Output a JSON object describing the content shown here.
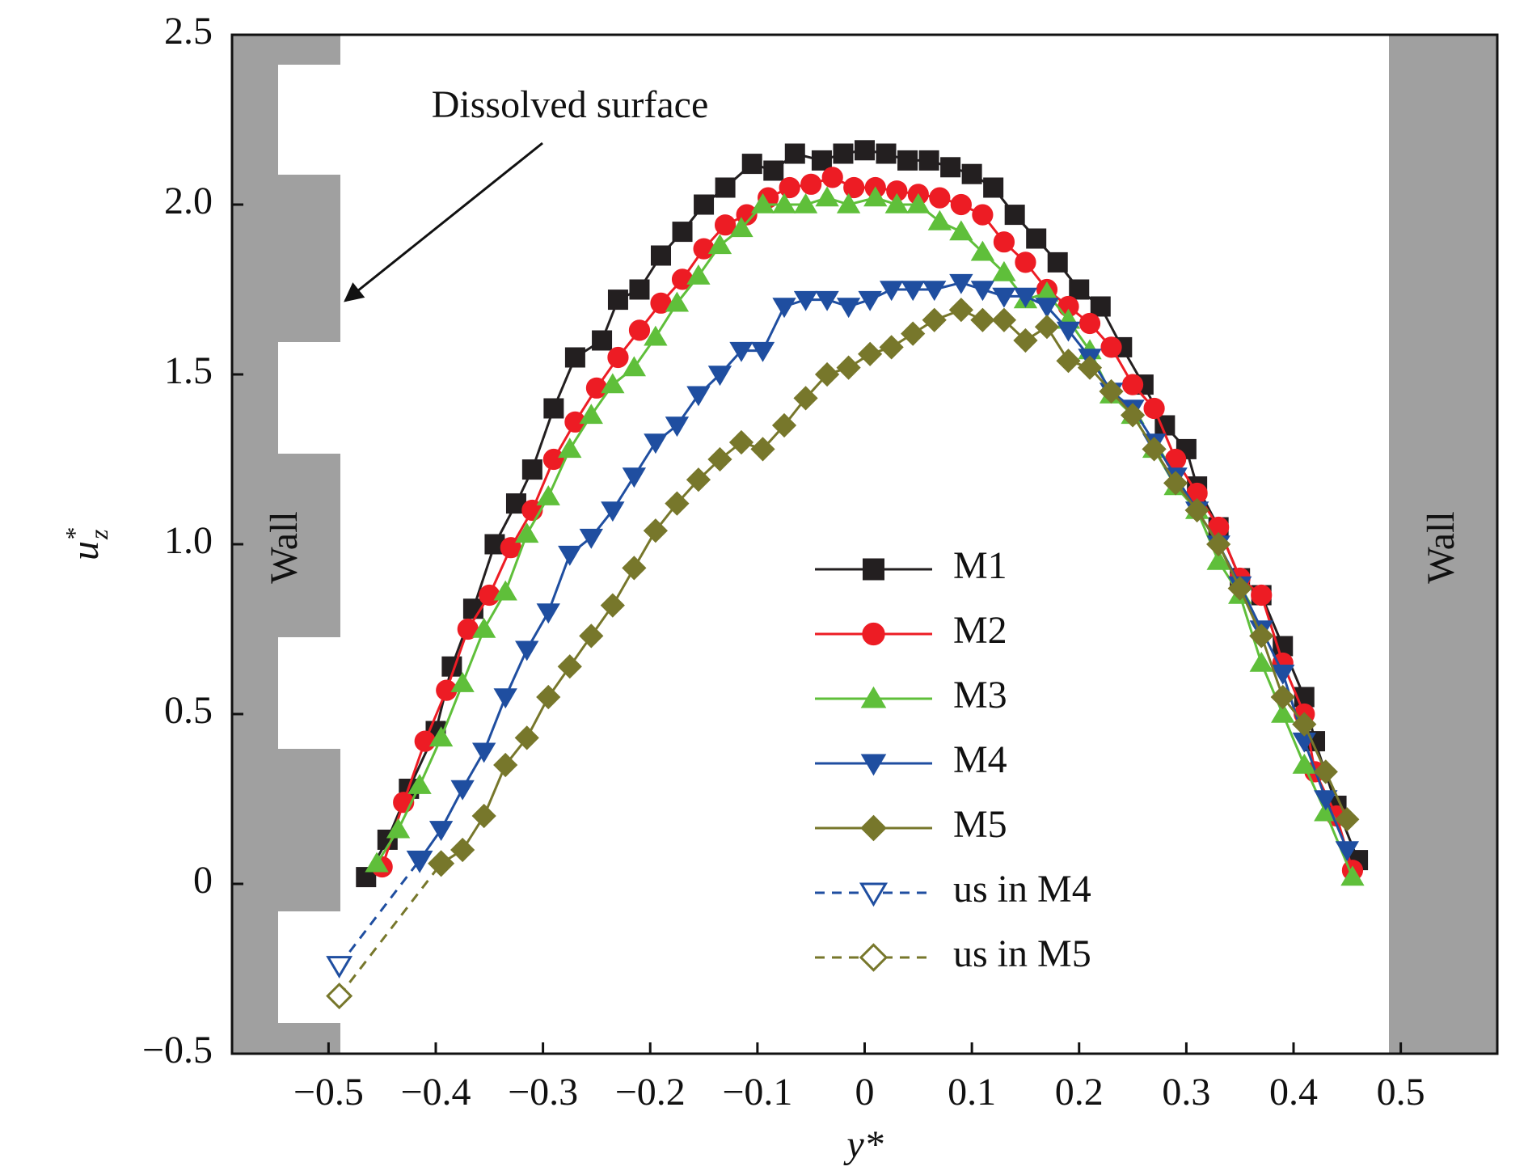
{
  "chart_data": {
    "type": "line",
    "xlabel": "y*",
    "ylabel": {
      "base": "u",
      "sup": "*",
      "sub": "z"
    },
    "annotations": {
      "dissolved": "Dissolved surface",
      "wall_left": "Wall",
      "wall_right": "Wall"
    },
    "xlim": [
      -0.59,
      0.59
    ],
    "ylim": [
      -0.5,
      2.5
    ],
    "xticks": [
      {
        "value": -0.5,
        "label": "−0.5"
      },
      {
        "value": -0.4,
        "label": "−0.4"
      },
      {
        "value": -0.3,
        "label": "−0.3"
      },
      {
        "value": -0.2,
        "label": "−0.2"
      },
      {
        "value": -0.1,
        "label": "−0.1"
      },
      0,
      0.1,
      0.2,
      0.3,
      0.4,
      0.5
    ],
    "yticks": [
      {
        "value": -0.5,
        "label": "−0.5"
      },
      0,
      0.5,
      {
        "value": 1.0,
        "label": "1.0"
      },
      1.5,
      {
        "value": 2.0,
        "label": "2.0"
      },
      2.5
    ],
    "series": [
      {
        "name": "M1",
        "color": "#231f20",
        "marker": "square",
        "filled": true,
        "dashed": false,
        "x": [
          -0.465,
          -0.445,
          -0.425,
          -0.4,
          -0.385,
          -0.365,
          -0.345,
          -0.325,
          -0.31,
          -0.29,
          -0.27,
          -0.245,
          -0.23,
          -0.21,
          -0.19,
          -0.17,
          -0.15,
          -0.13,
          -0.105,
          -0.085,
          -0.065,
          -0.04,
          -0.02,
          0,
          0.02,
          0.04,
          0.06,
          0.08,
          0.1,
          0.12,
          0.14,
          0.16,
          0.18,
          0.2,
          0.22,
          0.24,
          0.26,
          0.28,
          0.3,
          0.31,
          0.33,
          0.35,
          0.37,
          0.39,
          0.41,
          0.42,
          0.44,
          0.46
        ],
        "values": [
          0.02,
          0.13,
          0.28,
          0.45,
          0.64,
          0.81,
          1.0,
          1.12,
          1.22,
          1.4,
          1.55,
          1.6,
          1.72,
          1.75,
          1.85,
          1.92,
          2.0,
          2.05,
          2.12,
          2.1,
          2.15,
          2.13,
          2.15,
          2.16,
          2.15,
          2.13,
          2.13,
          2.11,
          2.09,
          2.05,
          1.97,
          1.9,
          1.83,
          1.75,
          1.7,
          1.58,
          1.47,
          1.35,
          1.28,
          1.17,
          1.05,
          0.9,
          0.85,
          0.7,
          0.55,
          0.42,
          0.23,
          0.07
        ]
      },
      {
        "name": "M2",
        "color": "#ed1c24",
        "marker": "circle",
        "filled": true,
        "dashed": false,
        "x": [
          -0.45,
          -0.43,
          -0.41,
          -0.39,
          -0.37,
          -0.35,
          -0.33,
          -0.31,
          -0.29,
          -0.27,
          -0.25,
          -0.23,
          -0.21,
          -0.19,
          -0.17,
          -0.15,
          -0.13,
          -0.11,
          -0.09,
          -0.07,
          -0.05,
          -0.03,
          -0.01,
          0.01,
          0.03,
          0.05,
          0.07,
          0.09,
          0.11,
          0.13,
          0.15,
          0.17,
          0.19,
          0.21,
          0.23,
          0.25,
          0.27,
          0.29,
          0.31,
          0.33,
          0.35,
          0.37,
          0.39,
          0.41,
          0.42,
          0.44,
          0.455
        ],
        "values": [
          0.05,
          0.24,
          0.42,
          0.57,
          0.75,
          0.85,
          0.99,
          1.1,
          1.25,
          1.36,
          1.46,
          1.55,
          1.63,
          1.71,
          1.78,
          1.87,
          1.94,
          1.97,
          2.02,
          2.05,
          2.06,
          2.08,
          2.05,
          2.05,
          2.04,
          2.03,
          2.02,
          2.0,
          1.97,
          1.89,
          1.83,
          1.75,
          1.7,
          1.65,
          1.58,
          1.47,
          1.4,
          1.25,
          1.15,
          1.05,
          0.9,
          0.85,
          0.65,
          0.5,
          0.33,
          0.2,
          0.04
        ]
      },
      {
        "name": "M3",
        "color": "#5fbf3a",
        "marker": "triangle-up",
        "filled": true,
        "dashed": false,
        "x": [
          -0.455,
          -0.435,
          -0.415,
          -0.395,
          -0.375,
          -0.355,
          -0.335,
          -0.315,
          -0.295,
          -0.275,
          -0.255,
          -0.235,
          -0.215,
          -0.195,
          -0.175,
          -0.155,
          -0.135,
          -0.115,
          -0.095,
          -0.075,
          -0.055,
          -0.035,
          -0.015,
          0.01,
          0.03,
          0.05,
          0.07,
          0.09,
          0.11,
          0.13,
          0.15,
          0.17,
          0.19,
          0.21,
          0.23,
          0.25,
          0.27,
          0.29,
          0.31,
          0.33,
          0.35,
          0.37,
          0.39,
          0.41,
          0.43,
          0.455
        ],
        "values": [
          0.06,
          0.16,
          0.29,
          0.43,
          0.59,
          0.75,
          0.86,
          1.03,
          1.14,
          1.28,
          1.38,
          1.47,
          1.52,
          1.61,
          1.71,
          1.79,
          1.88,
          1.93,
          2.0,
          2.0,
          2.0,
          2.02,
          2.0,
          2.02,
          2.0,
          2.0,
          1.95,
          1.92,
          1.86,
          1.8,
          1.72,
          1.74,
          1.66,
          1.57,
          1.44,
          1.38,
          1.28,
          1.17,
          1.1,
          0.95,
          0.85,
          0.65,
          0.5,
          0.35,
          0.21,
          0.02
        ]
      },
      {
        "name": "M4",
        "color": "#1f4ea0",
        "marker": "triangle-down",
        "filled": true,
        "dashed": false,
        "x": [
          -0.415,
          -0.395,
          -0.375,
          -0.355,
          -0.335,
          -0.315,
          -0.295,
          -0.275,
          -0.255,
          -0.235,
          -0.215,
          -0.195,
          -0.175,
          -0.155,
          -0.135,
          -0.115,
          -0.095,
          -0.075,
          -0.055,
          -0.035,
          -0.015,
          0.005,
          0.025,
          0.045,
          0.065,
          0.09,
          0.11,
          0.13,
          0.15,
          0.17,
          0.19,
          0.21,
          0.23,
          0.25,
          0.27,
          0.29,
          0.31,
          0.33,
          0.35,
          0.37,
          0.39,
          0.41,
          0.43,
          0.45
        ],
        "values": [
          0.07,
          0.16,
          0.28,
          0.39,
          0.55,
          0.69,
          0.8,
          0.97,
          1.02,
          1.1,
          1.2,
          1.3,
          1.35,
          1.44,
          1.5,
          1.57,
          1.57,
          1.7,
          1.72,
          1.72,
          1.7,
          1.72,
          1.75,
          1.75,
          1.75,
          1.77,
          1.75,
          1.73,
          1.73,
          1.7,
          1.63,
          1.55,
          1.45,
          1.4,
          1.3,
          1.2,
          1.1,
          1.0,
          0.88,
          0.75,
          0.62,
          0.42,
          0.25,
          0.1
        ]
      },
      {
        "name": "M5",
        "color": "#77772b",
        "marker": "diamond",
        "filled": true,
        "dashed": false,
        "x": [
          -0.395,
          -0.375,
          -0.355,
          -0.335,
          -0.315,
          -0.295,
          -0.275,
          -0.255,
          -0.235,
          -0.215,
          -0.195,
          -0.175,
          -0.155,
          -0.135,
          -0.115,
          -0.095,
          -0.075,
          -0.055,
          -0.035,
          -0.015,
          0.005,
          0.025,
          0.045,
          0.065,
          0.09,
          0.11,
          0.13,
          0.15,
          0.17,
          0.19,
          0.21,
          0.23,
          0.25,
          0.27,
          0.29,
          0.31,
          0.33,
          0.35,
          0.37,
          0.39,
          0.41,
          0.43,
          0.45
        ],
        "values": [
          0.06,
          0.1,
          0.2,
          0.35,
          0.43,
          0.55,
          0.64,
          0.73,
          0.82,
          0.93,
          1.04,
          1.12,
          1.19,
          1.25,
          1.3,
          1.28,
          1.35,
          1.43,
          1.5,
          1.52,
          1.56,
          1.58,
          1.62,
          1.66,
          1.69,
          1.66,
          1.66,
          1.6,
          1.64,
          1.54,
          1.52,
          1.45,
          1.38,
          1.28,
          1.18,
          1.1,
          1.0,
          0.87,
          0.73,
          0.55,
          0.47,
          0.33,
          0.19
        ]
      },
      {
        "name": "us in M4",
        "color": "#1f4ea0",
        "marker": "triangle-down",
        "filled": false,
        "dashed": true,
        "x": [
          -0.49,
          -0.415
        ],
        "values": [
          -0.24,
          0.07
        ]
      },
      {
        "name": "us in M5",
        "color": "#77772b",
        "marker": "diamond",
        "filled": false,
        "dashed": true,
        "x": [
          -0.49,
          -0.395
        ],
        "values": [
          -0.33,
          0.06
        ]
      }
    ],
    "legend": "lower-center"
  }
}
